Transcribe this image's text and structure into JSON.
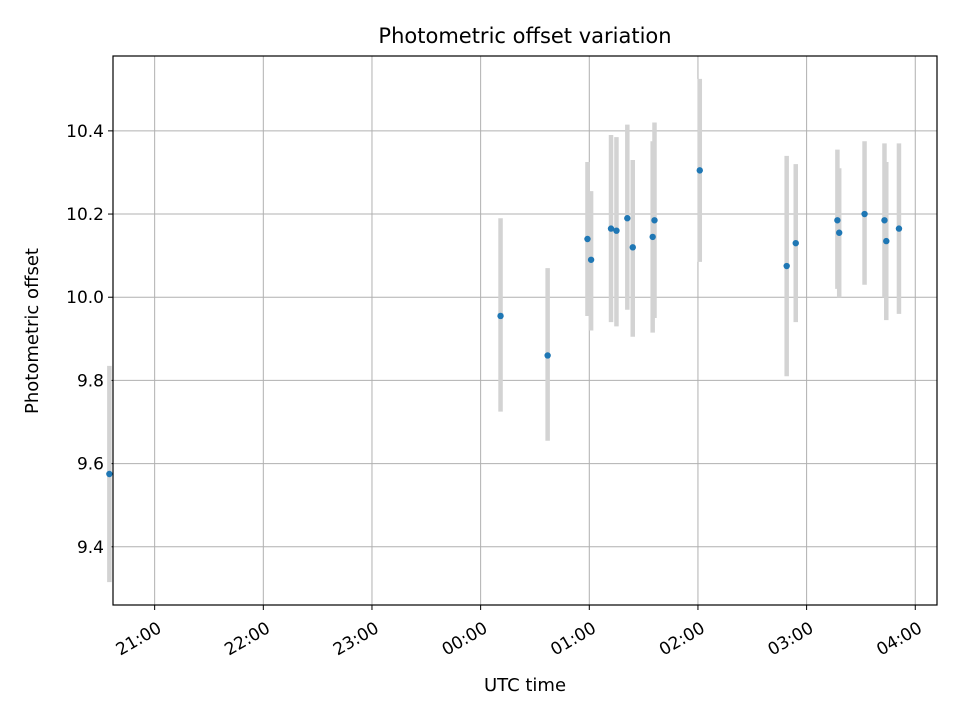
{
  "chart_data": {
    "type": "scatter",
    "title": "Photometric offset variation",
    "xlabel": "UTC time",
    "ylabel": "Photometric offset",
    "grid": true,
    "legend": "none",
    "marker_color": "#1f77b4",
    "errorbar_color": "#d3d3d3",
    "x_unit": "UTC time (hh:mm), points after midnight are on the following day",
    "xlim": [
      "20:37",
      "04:12"
    ],
    "ylim": [
      9.26,
      10.58
    ],
    "x_ticks": [
      "21:00",
      "22:00",
      "23:00",
      "00:00",
      "01:00",
      "02:00",
      "03:00",
      "04:00"
    ],
    "y_ticks": [
      9.4,
      9.6,
      9.8,
      10.0,
      10.2,
      10.4
    ],
    "points": [
      {
        "x": "20:35",
        "y": 9.575,
        "ylow": 9.315,
        "yhigh": 9.835
      },
      {
        "x": "00:11",
        "y": 9.955,
        "ylow": 9.725,
        "yhigh": 10.19
      },
      {
        "x": "00:37",
        "y": 9.86,
        "ylow": 9.655,
        "yhigh": 10.07
      },
      {
        "x": "00:59",
        "y": 10.14,
        "ylow": 9.955,
        "yhigh": 10.325
      },
      {
        "x": "01:01",
        "y": 10.09,
        "ylow": 9.92,
        "yhigh": 10.255
      },
      {
        "x": "01:12",
        "y": 10.165,
        "ylow": 9.94,
        "yhigh": 10.39
      },
      {
        "x": "01:15",
        "y": 10.16,
        "ylow": 9.93,
        "yhigh": 10.385
      },
      {
        "x": "01:21",
        "y": 10.19,
        "ylow": 9.97,
        "yhigh": 10.415
      },
      {
        "x": "01:24",
        "y": 10.12,
        "ylow": 9.905,
        "yhigh": 10.33
      },
      {
        "x": "01:35",
        "y": 10.145,
        "ylow": 9.915,
        "yhigh": 10.375
      },
      {
        "x": "01:36",
        "y": 10.185,
        "ylow": 9.95,
        "yhigh": 10.42
      },
      {
        "x": "02:01",
        "y": 10.305,
        "ylow": 10.085,
        "yhigh": 10.525
      },
      {
        "x": "02:49",
        "y": 10.075,
        "ylow": 9.81,
        "yhigh": 10.34
      },
      {
        "x": "02:54",
        "y": 10.13,
        "ylow": 9.94,
        "yhigh": 10.32
      },
      {
        "x": "03:17",
        "y": 10.185,
        "ylow": 10.02,
        "yhigh": 10.355
      },
      {
        "x": "03:18",
        "y": 10.155,
        "ylow": 10.0,
        "yhigh": 10.31
      },
      {
        "x": "03:32",
        "y": 10.2,
        "ylow": 10.03,
        "yhigh": 10.375
      },
      {
        "x": "03:43",
        "y": 10.185,
        "ylow": 10.0,
        "yhigh": 10.37
      },
      {
        "x": "03:44",
        "y": 10.135,
        "ylow": 9.945,
        "yhigh": 10.325
      },
      {
        "x": "03:51",
        "y": 10.165,
        "ylow": 9.96,
        "yhigh": 10.37
      }
    ]
  }
}
